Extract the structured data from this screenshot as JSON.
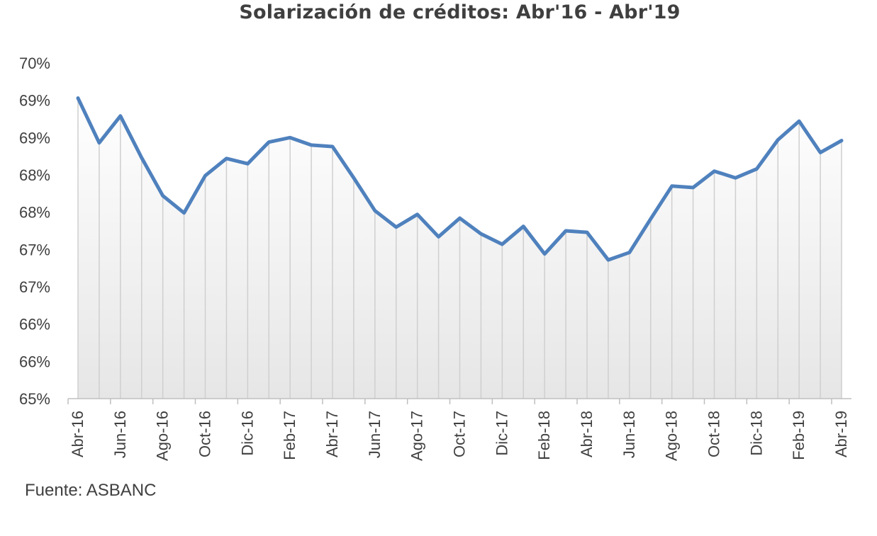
{
  "chart_data": {
    "type": "area",
    "title": "Solarización de créditos: Abr'16 - Abr'19",
    "xlabel": "",
    "ylabel": "",
    "ytick_labels": [
      "65%",
      "66%",
      "66%",
      "67%",
      "67%",
      "68%",
      "68%",
      "69%",
      "69%",
      "70%"
    ],
    "xtick_labels": [
      "Abr-16",
      "Jun-16",
      "Ago-16",
      "Oct-16",
      "Dic-16",
      "Feb-17",
      "Abr-17",
      "Jun-17",
      "Ago-17",
      "Oct-17",
      "Dic-17",
      "Feb-18",
      "Abr-18",
      "Jun-18",
      "Ago-18",
      "Oct-18",
      "Dic-18",
      "Feb-19",
      "Abr-19"
    ],
    "ylim": [
      65.0,
      69.5
    ],
    "grid": false,
    "series": [
      {
        "color": "#4f81bd",
        "x": [
          "Abr-16",
          "May-16",
          "Jun-16",
          "Jul-16",
          "Ago-16",
          "Sep-16",
          "Oct-16",
          "Nov-16",
          "Dic-16",
          "Ene-17",
          "Feb-17",
          "Mar-17",
          "Abr-17",
          "May-17",
          "Jun-17",
          "Jul-17",
          "Ago-17",
          "Sep-17",
          "Oct-17",
          "Nov-17",
          "Dic-17",
          "Ene-18",
          "Feb-18",
          "Mar-18",
          "Abr-18",
          "May-18",
          "Jun-18",
          "Jul-18",
          "Ago-18",
          "Sep-18",
          "Oct-18",
          "Nov-18",
          "Dic-18",
          "Ene-19",
          "Feb-19",
          "Mar-19",
          "Abr-19"
        ],
        "values": [
          69.03,
          68.43,
          68.79,
          68.23,
          67.72,
          67.49,
          67.99,
          68.22,
          68.15,
          68.44,
          68.5,
          68.4,
          68.38,
          67.96,
          67.52,
          67.3,
          67.47,
          67.17,
          67.42,
          67.21,
          67.07,
          67.31,
          66.94,
          67.25,
          67.23,
          66.86,
          66.96,
          67.41,
          67.85,
          67.83,
          68.05,
          67.96,
          68.08,
          68.47,
          68.72,
          68.3,
          68.46
        ]
      }
    ]
  },
  "source_note": "Fuente: ASBANC"
}
